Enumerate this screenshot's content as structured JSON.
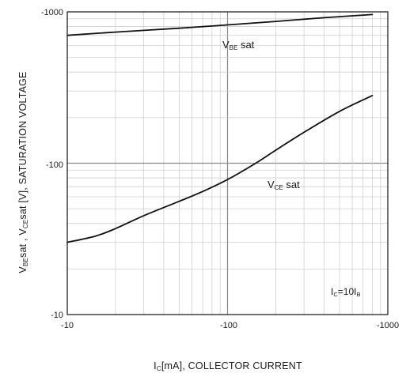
{
  "chart_data": {
    "type": "line",
    "xscale": "log",
    "yscale": "log",
    "xlim": [
      -10,
      -1000
    ],
    "ylim": [
      -10,
      -1000
    ],
    "x_ticks": [
      "-10",
      "-100",
      "-1000"
    ],
    "y_ticks": [
      "-1000",
      "-100",
      "-10"
    ],
    "xlabel": {
      "main": "I",
      "sub": "C",
      "rest": "[mA], COLLECTOR CURRENT"
    },
    "ylabel": {
      "p1": "V",
      "p1_sub": "BE",
      "p2": "sat  ,  V",
      "p2_sub": "CE",
      "p3": "sat  [V], SATURATION VOLTAGE"
    },
    "grid": true,
    "annotation": {
      "main": "I",
      "sub": "C",
      "mid": "=10I",
      "sub2": "B"
    },
    "series": [
      {
        "name": "VBE sat",
        "label_main": "V",
        "label_sub": "BE",
        "label_rest": " sat",
        "x": [
          -10,
          -20,
          -50,
          -100,
          -200,
          -400,
          -800
        ],
        "y": [
          -700,
          -735,
          -780,
          -820,
          -865,
          -915,
          -960
        ]
      },
      {
        "name": "VCE sat",
        "label_main": "V",
        "label_sub": "CE",
        "label_rest": " sat",
        "x": [
          -10,
          -15,
          -20,
          -30,
          -50,
          -70,
          -100,
          -150,
          -200,
          -300,
          -500,
          -800
        ],
        "y": [
          -30,
          -33,
          -37,
          -45,
          -56,
          -65,
          -78,
          -100,
          -122,
          -160,
          -220,
          -280
        ]
      }
    ]
  }
}
